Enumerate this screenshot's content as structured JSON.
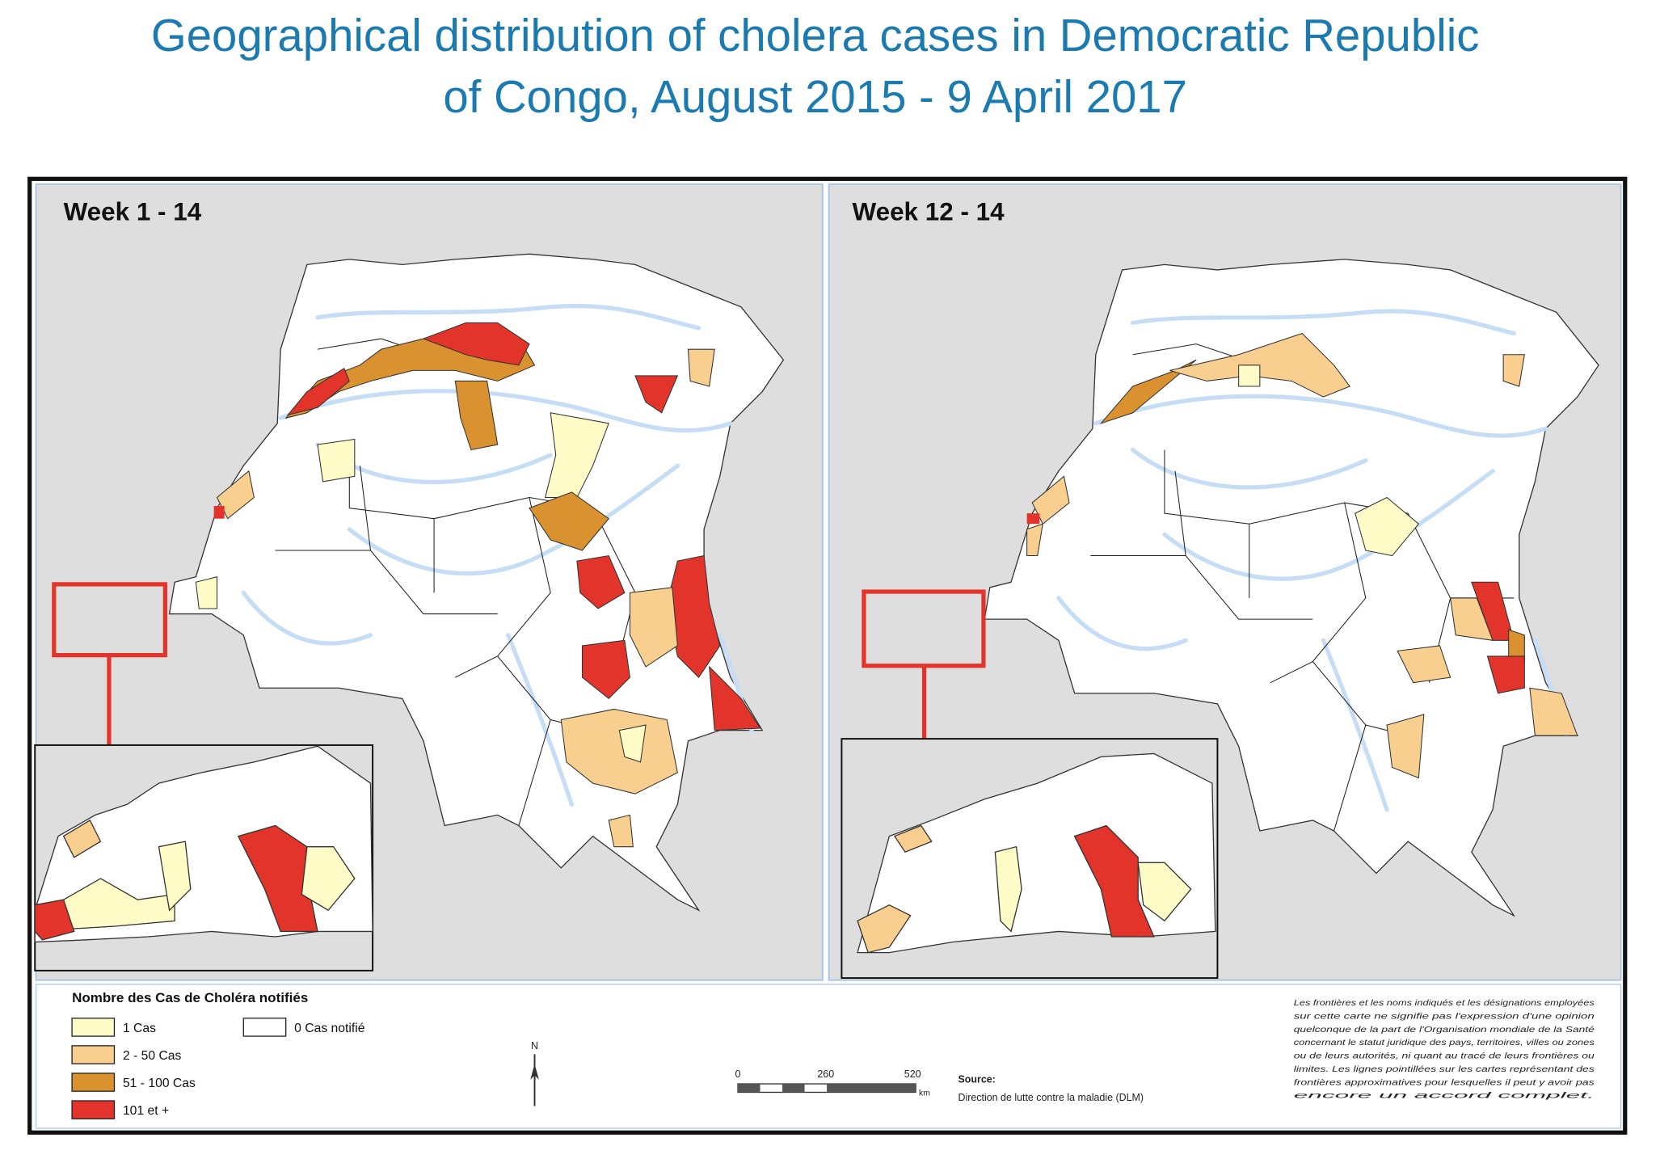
{
  "header": {
    "title": [
      "Geographical distribution of cholera cases in Democratic Republic",
      "of Congo, August 2015 - 9 April 2017"
    ]
  },
  "panels": [
    {
      "label": "Week 1 - 14"
    },
    {
      "label": "Week 12 - 14"
    }
  ],
  "legend": {
    "title": "Nombre des Cas de Choléra notifiés",
    "items": [
      {
        "label": "1 Cas",
        "color": "#fffcc8"
      },
      {
        "label": "2 - 50 Cas",
        "color": "#f8cf8e"
      },
      {
        "label": "51 - 100 Cas",
        "color": "#d9922f"
      },
      {
        "label": "101 et +",
        "color": "#e2342a"
      },
      {
        "label": "0 Cas notifié",
        "color": "#ffffff"
      }
    ]
  },
  "north": "N",
  "scale": {
    "labels": [
      "0",
      "260",
      "520"
    ],
    "unit": "km"
  },
  "source": [
    "Source:",
    "Direction de lutte contre la maladie (DLM)"
  ],
  "disclaimer": [
    "Les frontières et les noms indiqués et les désignations employées",
    "sur cette carte ne signifie pas l'expression d'une opinion",
    "quelconque de la part de l'Organisation mondiale de la Santé",
    "concernant le statut juridique des pays, territoires, villes ou zones",
    "ou de leurs autorités, ni quant au tracé de leurs frontières ou",
    "limites. Les lignes pointillées sur les cartes représentant des",
    "frontières approximatives pour lesquelles il peut y avoir pas",
    "encore un accord complet."
  ]
}
